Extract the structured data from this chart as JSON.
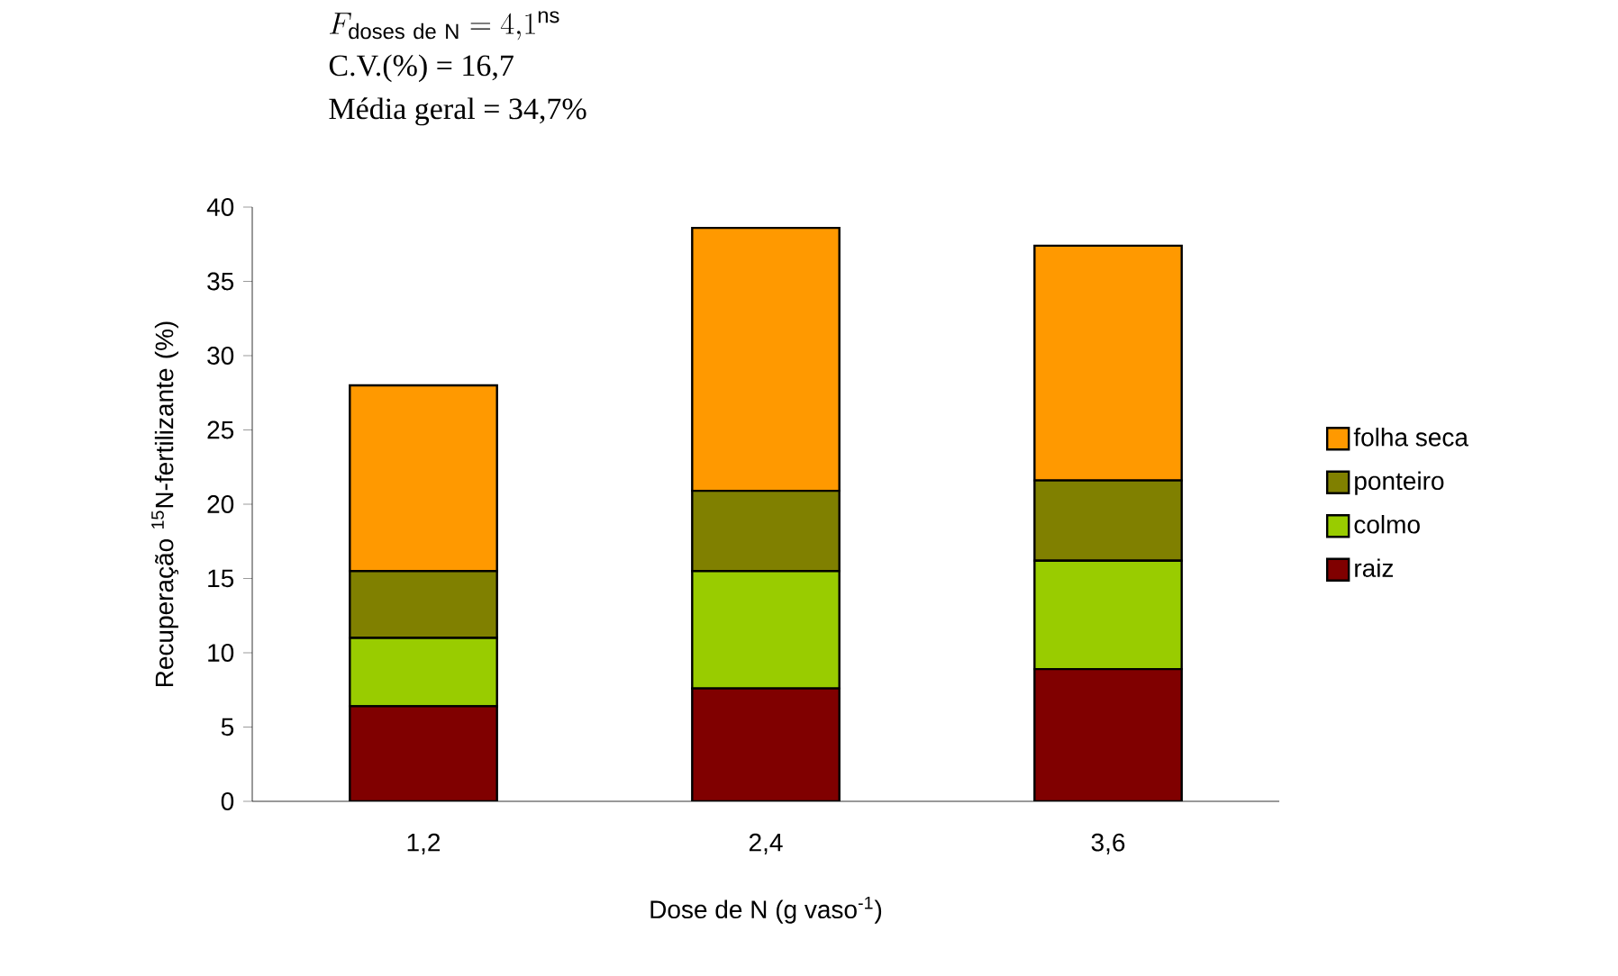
{
  "chart_data": {
    "type": "bar",
    "stacked": true,
    "xlabel": "Dose de N (g vaso$^{-1}$)",
    "ylabel": "Recuperação $^{15}$N-fertilizante (%)",
    "categories": [
      "1,2",
      "2,4",
      "3,6"
    ],
    "series": [
      {
        "name": "raiz",
        "color": "#800000",
        "values": [
          6.4,
          7.6,
          8.9
        ]
      },
      {
        "name": "colmo",
        "color": "#99cc00",
        "values": [
          4.6,
          7.9,
          7.3
        ]
      },
      {
        "name": "ponteiro",
        "color": "#808000",
        "values": [
          4.5,
          5.4,
          5.4
        ]
      },
      {
        "name": "folha seca",
        "color": "#ff9900",
        "values": [
          12.5,
          17.7,
          15.8
        ]
      }
    ],
    "ylim": [
      0,
      40
    ],
    "yticks": [
      0,
      5,
      10,
      15,
      20,
      25,
      30,
      35,
      40
    ],
    "legend": "right",
    "grid": false,
    "annotations": [
      "F_{\\mathrm{doses\\ de\\ N}} = 4{,}1^{\\mathrm{ns}}",
      "C.V.(%) = 16,7",
      "Média geral = 34,7%"
    ]
  }
}
